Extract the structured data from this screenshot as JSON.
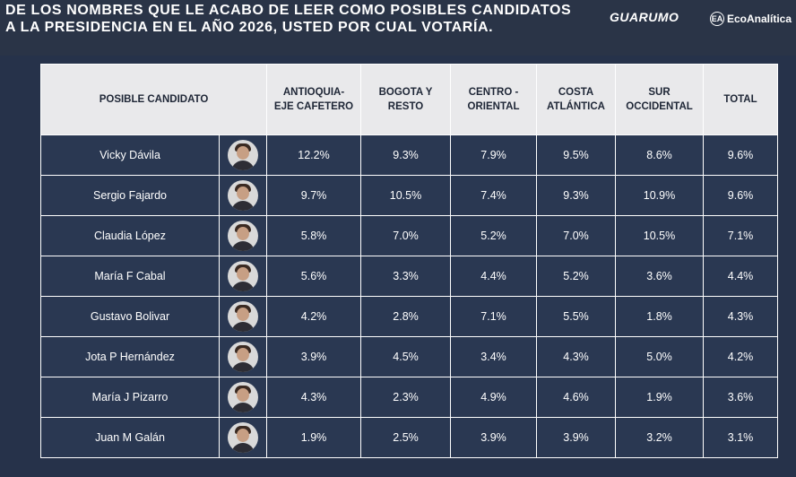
{
  "header": {
    "title_line1": "DE LOS NOMBRES QUE LE ACABO DE LEER COMO POSIBLES CANDIDATOS",
    "title_line2": "A LA PRESIDENCIA EN EL AÑO 2026, USTED POR CUAL VOTARÍA.",
    "logo_left": "GUARUMO",
    "logo_right": "EcoAnalítica",
    "logo_right_mark": "EA"
  },
  "chart_data": {
    "type": "table",
    "columns": [
      "POSIBLE CANDIDATO",
      "ANTIOQUIA-\nEJE CAFETERO",
      "BOGOTA Y\nRESTO",
      "CENTRO -\nORIENTAL",
      "COSTA\nATLÁNTICA",
      "SUR\nOCCIDENTAL",
      "TOTAL"
    ],
    "rows": [
      {
        "candidate": "Vicky Dávila",
        "values": [
          "12.2%",
          "9.3%",
          "7.9%",
          "9.5%",
          "8.6%",
          "9.6%"
        ]
      },
      {
        "candidate": "Sergio Fajardo",
        "values": [
          "9.7%",
          "10.5%",
          "7.4%",
          "9.3%",
          "10.9%",
          "9.6%"
        ]
      },
      {
        "candidate": "Claudia López",
        "values": [
          "5.8%",
          "7.0%",
          "5.2%",
          "7.0%",
          "10.5%",
          "7.1%"
        ]
      },
      {
        "candidate": "María F Cabal",
        "values": [
          "5.6%",
          "3.3%",
          "4.4%",
          "5.2%",
          "3.6%",
          "4.4%"
        ]
      },
      {
        "candidate": "Gustavo Bolivar",
        "values": [
          "4.2%",
          "2.8%",
          "7.1%",
          "5.5%",
          "1.8%",
          "4.3%"
        ]
      },
      {
        "candidate": "Jota P Hernández",
        "values": [
          "3.9%",
          "4.5%",
          "3.4%",
          "4.3%",
          "5.0%",
          "4.2%"
        ]
      },
      {
        "candidate": "María J Pizarro",
        "values": [
          "4.3%",
          "2.3%",
          "4.9%",
          "4.6%",
          "1.9%",
          "3.6%"
        ]
      },
      {
        "candidate": "Juan M Galán",
        "values": [
          "1.9%",
          "2.5%",
          "3.9%",
          "3.9%",
          "3.2%",
          "3.1%"
        ]
      }
    ]
  },
  "colors": {
    "background": "#26324a",
    "header_cell": "#e9e9eb",
    "body_cell": "#2a3852",
    "grid": "#ffffff"
  }
}
